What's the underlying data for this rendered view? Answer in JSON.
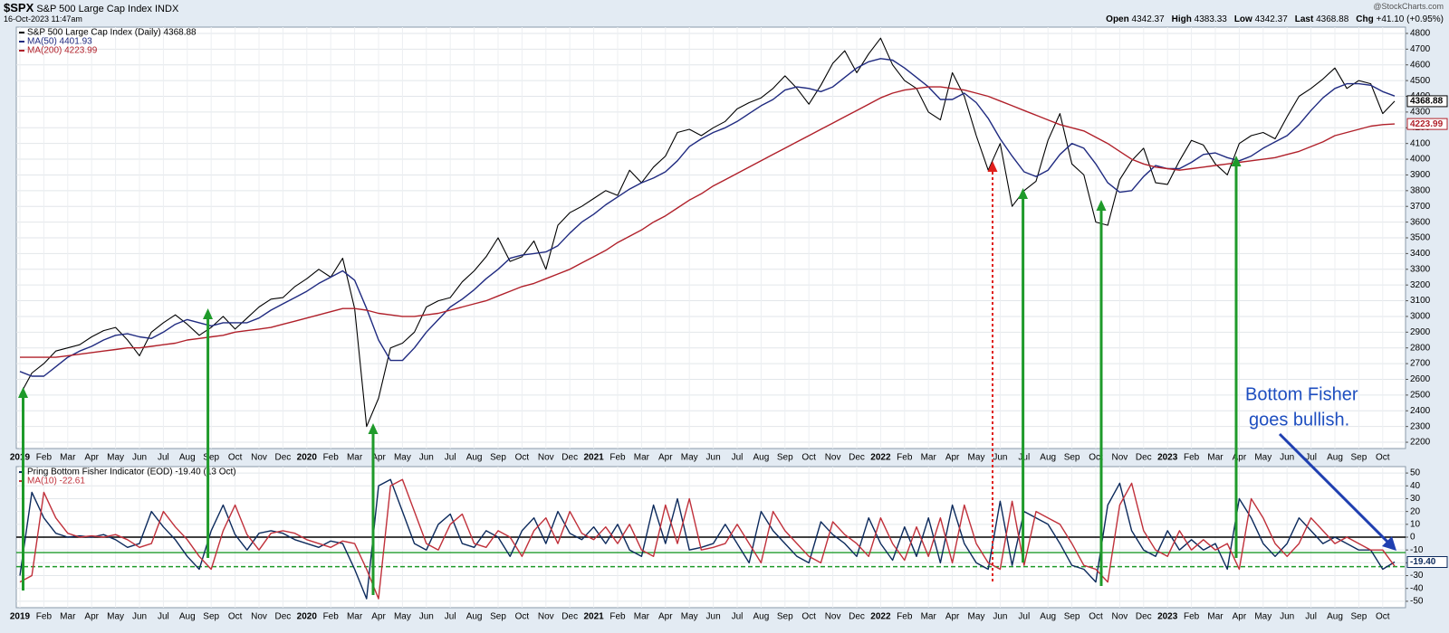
{
  "header": {
    "symbol": "$SPX",
    "name": "S&P 500 Large Cap Index",
    "exchange": "INDX",
    "timestamp": "16-Oct-2023 11:47am",
    "watermark": "@StockCharts.com",
    "quote": [
      {
        "label": "Open",
        "value": "4342.37"
      },
      {
        "label": "High",
        "value": "4383.33"
      },
      {
        "label": "Low",
        "value": "4342.37"
      },
      {
        "label": "Last",
        "value": "4368.88"
      },
      {
        "label": "Chg",
        "value": "+41.10 (+0.95%)"
      }
    ]
  },
  "chart_data": [
    {
      "type": "line",
      "grid": true,
      "ylim": [
        2160,
        4840
      ],
      "yticks": [
        2200,
        2300,
        2400,
        2500,
        2600,
        2700,
        2800,
        2900,
        3000,
        3100,
        3200,
        3300,
        3400,
        3500,
        3600,
        3700,
        3800,
        3900,
        4000,
        4100,
        4200,
        4300,
        4400,
        4500,
        4600,
        4700,
        4800
      ],
      "categories": [
        "2019",
        null,
        "Feb",
        null,
        "Mar",
        null,
        "Apr",
        null,
        "May",
        null,
        "Jun",
        null,
        "Jul",
        null,
        "Aug",
        null,
        "Sep",
        null,
        "Oct",
        null,
        "Nov",
        null,
        "Dec",
        null,
        "2020",
        null,
        "Feb",
        null,
        "Mar",
        null,
        "Apr",
        null,
        "May",
        null,
        "Jun",
        null,
        "Jul",
        null,
        "Aug",
        null,
        "Sep",
        null,
        "Oct",
        null,
        "Nov",
        null,
        "Dec",
        null,
        "2021",
        null,
        "Feb",
        null,
        "Mar",
        null,
        "Apr",
        null,
        "May",
        null,
        "Jun",
        null,
        "Jul",
        null,
        "Aug",
        null,
        "Sep",
        null,
        "Oct",
        null,
        "Nov",
        null,
        "Dec",
        null,
        "2022",
        null,
        "Feb",
        null,
        "Mar",
        null,
        "Apr",
        null,
        "May",
        null,
        "Jun",
        null,
        "Jul",
        null,
        "Aug",
        null,
        "Sep",
        null,
        "Oct",
        null,
        "Nov",
        null,
        "Dec",
        null,
        "2023",
        null,
        "Feb",
        null,
        "Mar",
        null,
        "Apr",
        null,
        "May",
        null,
        "Jun",
        null,
        "Jul",
        null,
        "Aug",
        null,
        "Sep",
        null,
        "Oct",
        null
      ],
      "series": [
        {
          "name": "S&P 500 Large Cap Index (Daily) 4368.88",
          "color": "#000000",
          "last_value": 4368.88,
          "values": [
            2500,
            2640,
            2700,
            2780,
            2800,
            2820,
            2870,
            2910,
            2930,
            2850,
            2750,
            2900,
            2960,
            3010,
            2950,
            2880,
            2930,
            3000,
            2920,
            2990,
            3060,
            3110,
            3120,
            3190,
            3240,
            3300,
            3250,
            3370,
            3050,
            2300,
            2480,
            2800,
            2830,
            2900,
            3060,
            3100,
            3120,
            3220,
            3290,
            3380,
            3500,
            3350,
            3380,
            3480,
            3300,
            3580,
            3660,
            3700,
            3750,
            3800,
            3770,
            3930,
            3850,
            3950,
            4020,
            4170,
            4190,
            4150,
            4200,
            4240,
            4320,
            4360,
            4390,
            4450,
            4530,
            4450,
            4350,
            4470,
            4610,
            4690,
            4550,
            4670,
            4770,
            4600,
            4500,
            4450,
            4300,
            4250,
            4550,
            4400,
            4150,
            3930,
            4100,
            3700,
            3800,
            3860,
            4120,
            4290,
            3970,
            3900,
            3600,
            3580,
            3870,
            3990,
            4070,
            3850,
            3840,
            3990,
            4120,
            4090,
            3970,
            3900,
            4100,
            4150,
            4170,
            4130,
            4270,
            4400,
            4450,
            4510,
            4580,
            4450,
            4500,
            4480,
            4290,
            4368.88
          ]
        },
        {
          "name": "MA(50) 4401.93",
          "color": "#1f2a80",
          "values": [
            2650,
            2620,
            2620,
            2680,
            2740,
            2780,
            2810,
            2850,
            2880,
            2890,
            2870,
            2860,
            2900,
            2950,
            2980,
            2960,
            2940,
            2960,
            2960,
            2960,
            2990,
            3040,
            3080,
            3120,
            3160,
            3210,
            3250,
            3290,
            3230,
            3050,
            2850,
            2720,
            2720,
            2800,
            2900,
            2980,
            3060,
            3110,
            3170,
            3240,
            3300,
            3370,
            3390,
            3400,
            3410,
            3450,
            3530,
            3600,
            3650,
            3710,
            3760,
            3810,
            3850,
            3880,
            3920,
            3990,
            4080,
            4130,
            4170,
            4200,
            4240,
            4290,
            4340,
            4380,
            4440,
            4460,
            4450,
            4430,
            4460,
            4520,
            4580,
            4620,
            4640,
            4630,
            4580,
            4520,
            4460,
            4380,
            4380,
            4420,
            4360,
            4260,
            4130,
            4020,
            3920,
            3890,
            3930,
            4030,
            4100,
            4070,
            3970,
            3850,
            3790,
            3800,
            3890,
            3960,
            3940,
            3940,
            3980,
            4030,
            4040,
            4010,
            3990,
            4020,
            4070,
            4110,
            4150,
            4220,
            4310,
            4390,
            4450,
            4480,
            4480,
            4470,
            4430,
            4401.93
          ]
        },
        {
          "name": "MA(200) 4223.99",
          "color": "#b0202a",
          "last_value": 4223.99,
          "values": [
            2740,
            2740,
            2740,
            2740,
            2750,
            2760,
            2770,
            2780,
            2790,
            2800,
            2800,
            2810,
            2820,
            2830,
            2850,
            2860,
            2870,
            2880,
            2900,
            2910,
            2920,
            2930,
            2950,
            2970,
            2990,
            3010,
            3030,
            3050,
            3050,
            3040,
            3020,
            3010,
            3000,
            3000,
            3010,
            3020,
            3040,
            3060,
            3080,
            3100,
            3130,
            3160,
            3190,
            3210,
            3240,
            3270,
            3300,
            3340,
            3380,
            3420,
            3470,
            3510,
            3550,
            3600,
            3640,
            3690,
            3740,
            3780,
            3830,
            3870,
            3910,
            3950,
            3990,
            4030,
            4070,
            4110,
            4150,
            4190,
            4230,
            4270,
            4310,
            4350,
            4390,
            4420,
            4440,
            4450,
            4460,
            4460,
            4450,
            4440,
            4420,
            4400,
            4370,
            4340,
            4310,
            4280,
            4250,
            4220,
            4200,
            4180,
            4140,
            4100,
            4050,
            4000,
            3970,
            3950,
            3940,
            3930,
            3940,
            3950,
            3960,
            3970,
            3980,
            3990,
            4000,
            4010,
            4030,
            4050,
            4080,
            4110,
            4150,
            4170,
            4190,
            4210,
            4220,
            4223.99
          ]
        }
      ]
    },
    {
      "type": "line",
      "grid": true,
      "ylim": [
        -55,
        55
      ],
      "yticks": [
        -50,
        -40,
        -30,
        -20,
        -10,
        0,
        10,
        20,
        30,
        40,
        50
      ],
      "reference_lines": [
        {
          "value": 0,
          "color": "#000000",
          "dash": false
        },
        {
          "value": -12,
          "color": "#1e9a2a",
          "dash": false
        },
        {
          "value": -23,
          "color": "#1e9a2a",
          "dash": true
        }
      ],
      "annotations": [
        "Bottom Fisher",
        "goes bullish."
      ],
      "categories": [
        "2019",
        null,
        "Feb",
        null,
        "Mar",
        null,
        "Apr",
        null,
        "May",
        null,
        "Jun",
        null,
        "Jul",
        null,
        "Aug",
        null,
        "Sep",
        null,
        "Oct",
        null,
        "Nov",
        null,
        "Dec",
        null,
        "2020",
        null,
        "Feb",
        null,
        "Mar",
        null,
        "Apr",
        null,
        "May",
        null,
        "Jun",
        null,
        "Jul",
        null,
        "Aug",
        null,
        "Sep",
        null,
        "Oct",
        null,
        "Nov",
        null,
        "Dec",
        null,
        "2021",
        null,
        "Feb",
        null,
        "Mar",
        null,
        "Apr",
        null,
        "May",
        null,
        "Jun",
        null,
        "Jul",
        null,
        "Aug",
        null,
        "Sep",
        null,
        "Oct",
        null,
        "Nov",
        null,
        "Dec",
        null,
        "2022",
        null,
        "Feb",
        null,
        "Mar",
        null,
        "Apr",
        null,
        "May",
        null,
        "Jun",
        null,
        "Jul",
        null,
        "Aug",
        null,
        "Sep",
        null,
        "Oct",
        null,
        "Nov",
        null,
        "Dec",
        null,
        "2023",
        null,
        "Feb",
        null,
        "Mar",
        null,
        "Apr",
        null,
        "May",
        null,
        "Jun",
        null,
        "Jul",
        null,
        "Aug",
        null,
        "Sep",
        null,
        "Oct",
        null
      ],
      "series": [
        {
          "name": "Pring Bottom Fisher Indicator (EOD) -19.40 (13 Oct)",
          "color": "#0c2a5c",
          "last_value": {
            "value": -19.4,
            "label": "-19.40"
          },
          "values": [
            -30,
            35,
            15,
            3,
            0,
            1,
            0,
            2,
            -2,
            -8,
            -5,
            20,
            8,
            -2,
            -15,
            -25,
            5,
            25,
            2,
            -10,
            3,
            5,
            3,
            -2,
            -5,
            -8,
            -3,
            -5,
            -25,
            -48,
            40,
            45,
            20,
            -5,
            -10,
            10,
            18,
            -5,
            -8,
            5,
            0,
            -15,
            5,
            15,
            -5,
            20,
            3,
            -2,
            8,
            -5,
            10,
            -10,
            -15,
            25,
            -5,
            30,
            -10,
            -8,
            -5,
            10,
            -5,
            -20,
            20,
            5,
            -5,
            -15,
            -20,
            12,
            2,
            -5,
            -15,
            15,
            -5,
            -18,
            8,
            -15,
            15,
            -20,
            25,
            -5,
            -20,
            -25,
            28,
            -22,
            20,
            15,
            10,
            -5,
            -22,
            -25,
            -35,
            25,
            42,
            5,
            -10,
            -15,
            5,
            -10,
            -2,
            -10,
            -5,
            -25,
            30,
            15,
            -5,
            -15,
            -5,
            15,
            5,
            -5,
            0,
            -5,
            -10,
            -10,
            -25,
            -19.4
          ]
        },
        {
          "name": "MA(10) -22.61",
          "color": "#c0303a",
          "values": [
            -35,
            -30,
            35,
            15,
            3,
            0,
            1,
            0,
            2,
            -2,
            -8,
            -5,
            20,
            8,
            -2,
            -15,
            -25,
            5,
            25,
            2,
            -10,
            3,
            5,
            3,
            -2,
            -5,
            -8,
            -3,
            -5,
            -25,
            -48,
            40,
            45,
            20,
            -5,
            -10,
            10,
            18,
            -5,
            -8,
            5,
            0,
            -15,
            5,
            15,
            -5,
            20,
            3,
            -2,
            8,
            -5,
            10,
            -10,
            -15,
            25,
            -5,
            30,
            -10,
            -8,
            -5,
            10,
            -5,
            -20,
            20,
            5,
            -5,
            -15,
            -20,
            12,
            2,
            -5,
            -15,
            15,
            -5,
            -18,
            8,
            -15,
            15,
            -20,
            25,
            -5,
            -20,
            -25,
            28,
            -22,
            20,
            15,
            10,
            -5,
            -22,
            -25,
            -35,
            25,
            42,
            5,
            -10,
            -15,
            5,
            -10,
            -2,
            -10,
            -5,
            -25,
            30,
            15,
            -5,
            -15,
            -5,
            15,
            5,
            -5,
            0,
            -5,
            -10,
            -10,
            -22.61
          ]
        }
      ]
    }
  ]
}
